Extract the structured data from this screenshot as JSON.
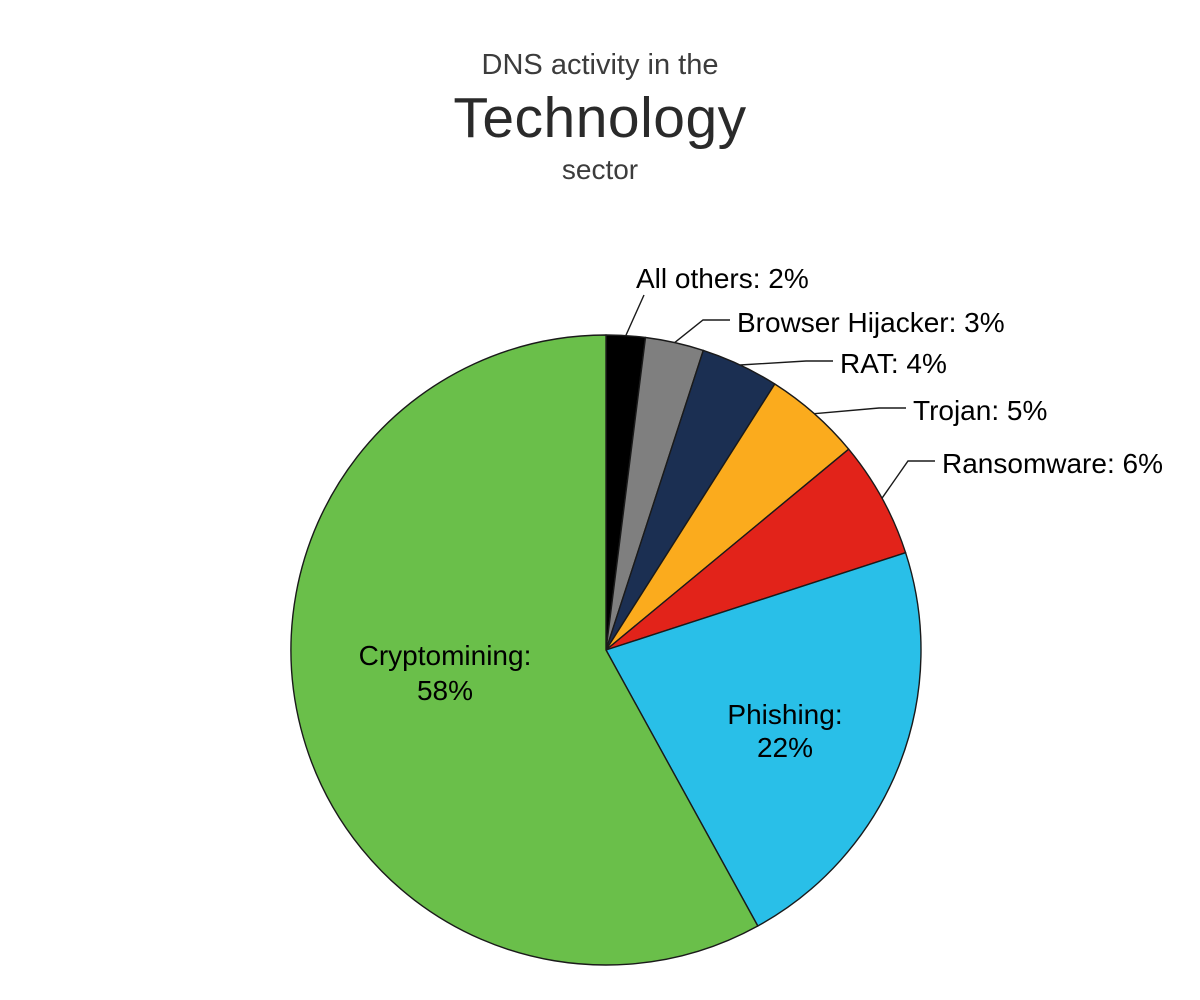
{
  "figure": {
    "title_top": "DNS activity in the",
    "title_main": "Technology",
    "title_bottom": "sector"
  },
  "chart_data": {
    "type": "pie",
    "title": "DNS activity in the Technology sector",
    "unit": "%",
    "start_angle_deg": 0,
    "direction": "clockwise",
    "label_format": "{label}: {value}%",
    "outline_color": "#1a1a1a",
    "leader_line_color": "#1a1a1a",
    "background": "#ffffff",
    "slices": [
      {
        "label": "All others",
        "value": 2,
        "color": "#000000",
        "label_placement": "outside"
      },
      {
        "label": "Browser Hijacker",
        "value": 3,
        "color": "#7f7f7f",
        "label_placement": "outside"
      },
      {
        "label": "RAT",
        "value": 4,
        "color": "#1b2f52",
        "label_placement": "outside"
      },
      {
        "label": "Trojan",
        "value": 5,
        "color": "#fbab1d",
        "label_placement": "outside"
      },
      {
        "label": "Ransomware",
        "value": 6,
        "color": "#e2231a",
        "label_placement": "outside"
      },
      {
        "label": "Phishing",
        "value": 22,
        "color": "#29bfe8",
        "label_placement": "inside"
      },
      {
        "label": "Cryptomining",
        "value": 58,
        "color": "#6abf4a",
        "label_placement": "inside"
      }
    ]
  }
}
